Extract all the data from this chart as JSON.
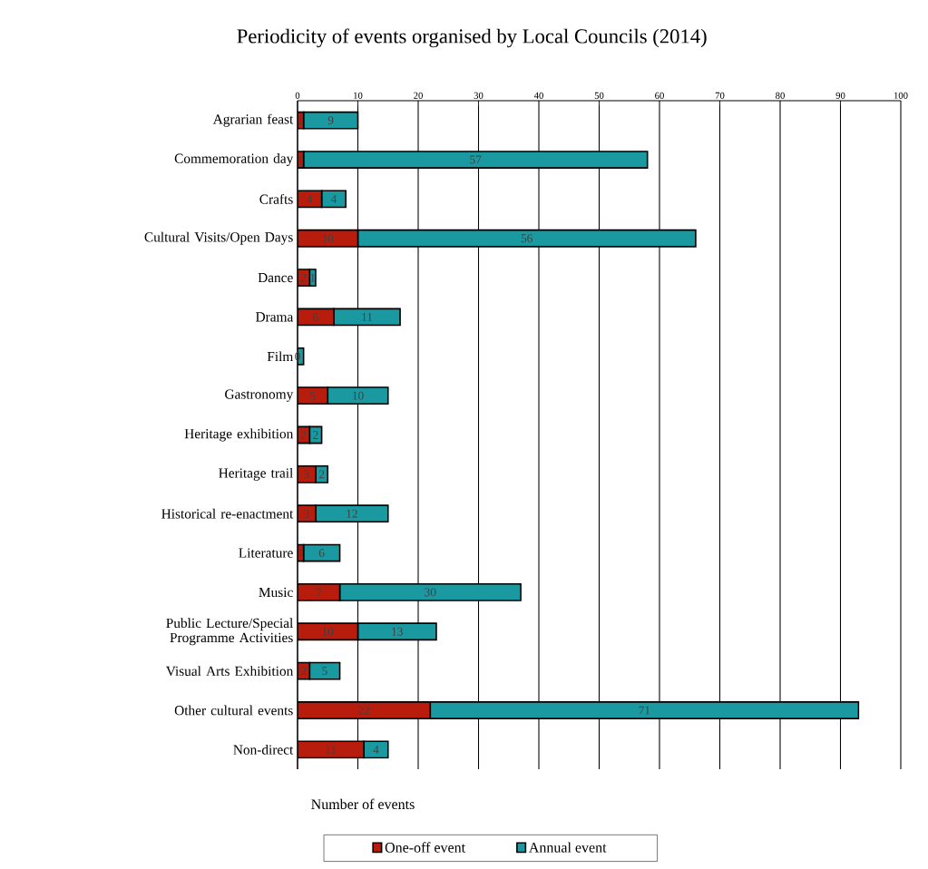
{
  "chart_data": {
    "type": "bar",
    "orientation": "horizontal",
    "stacked": true,
    "title": "Periodicity of events organised by Local Councils (2014)",
    "xlabel": "Number of events",
    "categories": [
      "Agrarian feast",
      "Commemoration day",
      "Crafts",
      "Cultural Visits/Open Days",
      "Dance",
      "Drama",
      "Film",
      "Gastronomy",
      "Heritage exhibition",
      "Heritage trail",
      "Historical re-enactment",
      "Literature",
      "Music",
      "Public Lecture/Special Programme Activities",
      "Visual Arts Exhibition",
      "Other cultural events",
      "Non-direct"
    ],
    "series": [
      {
        "name": "One-off event",
        "color": "#b81c0c",
        "values": [
          1,
          1,
          4,
          10,
          2,
          6,
          0,
          5,
          2,
          3,
          3,
          1,
          7,
          10,
          2,
          22,
          11
        ],
        "value_labels": [
          "1",
          "1",
          "4",
          "10",
          "2",
          "6",
          "0",
          "5",
          "2",
          "3",
          "3",
          "1",
          "7",
          "10",
          "2",
          "22",
          "11"
        ]
      },
      {
        "name": "Annual event",
        "color": "#1a9aa0",
        "values": [
          9,
          57,
          4,
          56,
          1,
          11,
          1,
          10,
          2,
          2,
          12,
          6,
          30,
          13,
          5,
          71,
          4
        ],
        "value_labels": [
          "9",
          "57",
          "4",
          "56",
          "1",
          "11",
          null,
          "10",
          "2",
          "2",
          "12",
          "6",
          "30",
          "13",
          "5",
          "71",
          "4"
        ]
      }
    ],
    "xlim": [
      0,
      100
    ],
    "xticks": [
      0,
      10,
      20,
      30,
      40,
      50,
      60,
      70,
      80,
      90,
      100
    ],
    "grid": "x",
    "legend": "bottom"
  }
}
